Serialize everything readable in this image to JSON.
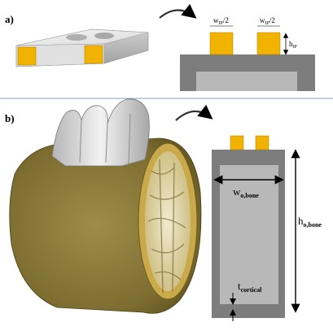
{
  "panel_a": {
    "label": "a)",
    "dim_width_left": "w",
    "dim_width_left_sub": "IP",
    "dim_width_left_suffix": "/2",
    "dim_width_right": "w",
    "dim_width_right_sub": "IP",
    "dim_width_right_suffix": "/2",
    "dim_height": "h",
    "dim_height_sub": "IP"
  },
  "panel_b": {
    "label": "b)",
    "dim_width": "w",
    "dim_width_sub": "o,bone",
    "dim_height": "h",
    "dim_height_sub": "o,bone",
    "dim_thickness": "t",
    "dim_thickness_sub": "cortical"
  },
  "colors": {
    "implant": "#f2b300",
    "bone_outer": "#7d7d7d",
    "bone_inner": "#b8b8b8",
    "bone_3d": "#8a7a3a",
    "tooth": "#d8d8d8"
  }
}
